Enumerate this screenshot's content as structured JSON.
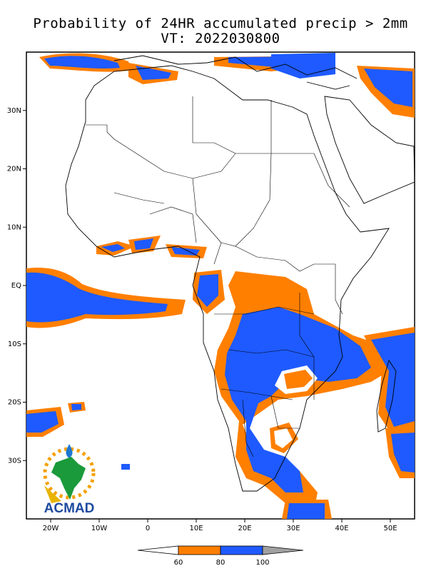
{
  "title_line1": "Probability of 24HR accumulated precip > 2mm",
  "title_line2": "VT: 2022030800",
  "map": {
    "lon_range": [
      -25,
      55
    ],
    "lat_range": [
      -40,
      40
    ],
    "lon_ticks": [
      "20W",
      "10W",
      "0",
      "10E",
      "20E",
      "30E",
      "40E",
      "50E"
    ],
    "lat_ticks": [
      "30N",
      "20N",
      "10N",
      "EQ",
      "10S",
      "20S",
      "30S"
    ]
  },
  "legend": {
    "labels": [
      "60",
      "80",
      "100"
    ],
    "colors": {
      "below": "#ffffff",
      "band_60_80": "#ff7f00",
      "band_80_100": "#1e5aff",
      "above": "#a0a0a0"
    }
  },
  "logo": {
    "text": "ACMAD",
    "icon": "africa-sun-logo-icon"
  }
}
